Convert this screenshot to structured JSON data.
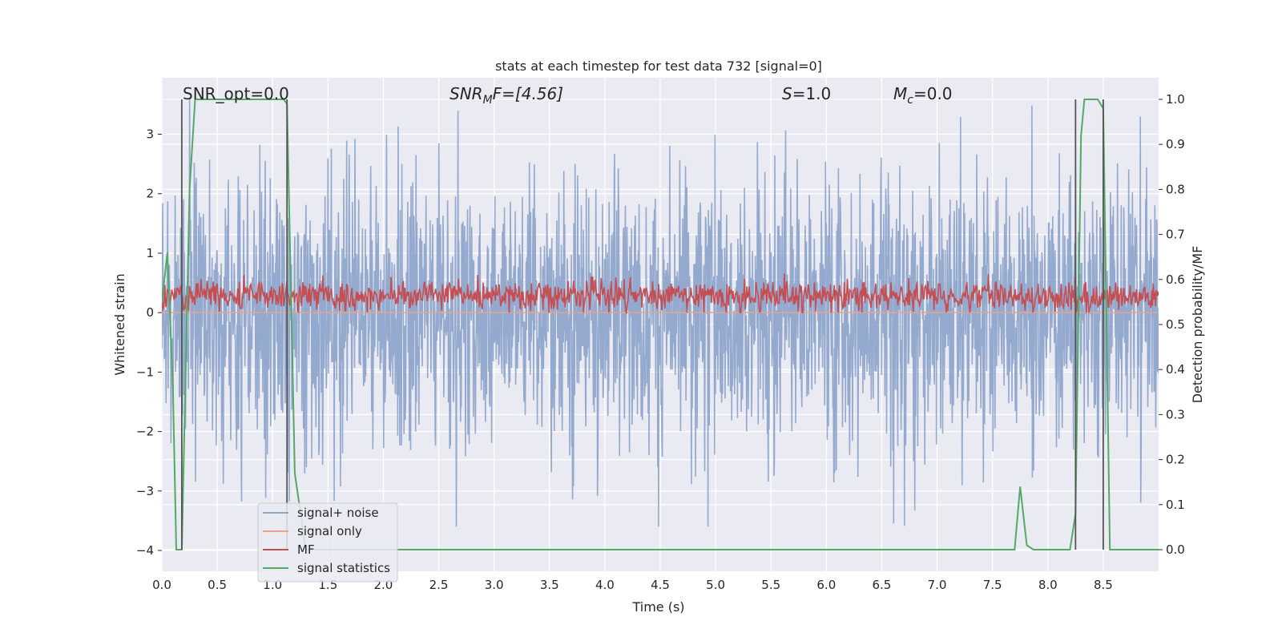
{
  "chart_data": {
    "type": "line",
    "title": "stats at each timestep for test data 732 [signal=0]",
    "xlabel": "Time (s)",
    "ylabel": "Whitened strain",
    "y2label": "Detection probability/MF",
    "xlim": [
      0.0,
      9.0
    ],
    "ylim": [
      -4.35,
      3.95
    ],
    "y2lim": [
      -0.048,
      1.048
    ],
    "x_ticks": [
      "0.0",
      "0.5",
      "1.0",
      "1.5",
      "2.0",
      "2.5",
      "3.0",
      "3.5",
      "4.0",
      "4.5",
      "5.0",
      "5.5",
      "6.0",
      "6.5",
      "7.0",
      "7.5",
      "8.0",
      "8.5"
    ],
    "y_ticks": [
      "3",
      "2",
      "1",
      "0",
      "−1",
      "−2",
      "−3",
      "−4"
    ],
    "y2_ticks": [
      "1.0",
      "0.9",
      "0.8",
      "0.7",
      "0.6",
      "0.5",
      "0.4",
      "0.3",
      "0.2",
      "0.1",
      "0.0"
    ],
    "grid": true,
    "legend_position": "lower-left",
    "annotations": {
      "snr_opt": "SNR_opt=0.0",
      "snr_mf_base": "SNR",
      "snr_mf_sub": "M",
      "snr_mf_rest": "F=[4.56]",
      "s_italic": "S",
      "s_rest": "=1.0",
      "mc_italic": "M",
      "mc_sub": "c",
      "mc_rest": "=0.0"
    },
    "series": [
      {
        "name": "signal+ noise",
        "color": "#8fa5cb",
        "axis": "left",
        "amplitude_range": [
          -3.6,
          3.6
        ]
      },
      {
        "name": "signal only",
        "color": "#e8a48a",
        "axis": "left",
        "values_constant": 0.0
      },
      {
        "name": "MF",
        "color": "#c44e52",
        "axis": "left",
        "typical_range": [
          0.0,
          0.8
        ]
      },
      {
        "name": "signal statistics",
        "color": "#55a868",
        "axis": "right",
        "x": [
          0.0,
          0.05,
          0.1,
          0.13,
          0.18,
          0.25,
          0.3,
          0.5,
          1.0,
          1.1,
          1.13,
          1.2,
          1.3,
          2.0,
          3.0,
          4.0,
          5.0,
          6.0,
          7.0,
          7.7,
          7.75,
          7.81,
          7.87,
          8.0,
          8.2,
          8.25,
          8.3,
          8.33,
          8.45,
          8.5,
          8.56,
          8.6,
          9.0
        ],
        "values": [
          0.55,
          0.66,
          0.36,
          0.0,
          0.0,
          0.8,
          1.0,
          1.0,
          1.0,
          1.0,
          0.99,
          0.17,
          0.0,
          0.0,
          0.0,
          0.0,
          0.0,
          0.0,
          0.0,
          0.0,
          0.14,
          0.01,
          0.0,
          0.0,
          0.0,
          0.08,
          0.92,
          1.0,
          1.0,
          0.98,
          0.0,
          0.0,
          0.0
        ]
      }
    ],
    "vertical_markers_x": [
      0.18,
      1.13,
      8.25,
      8.5
    ]
  }
}
